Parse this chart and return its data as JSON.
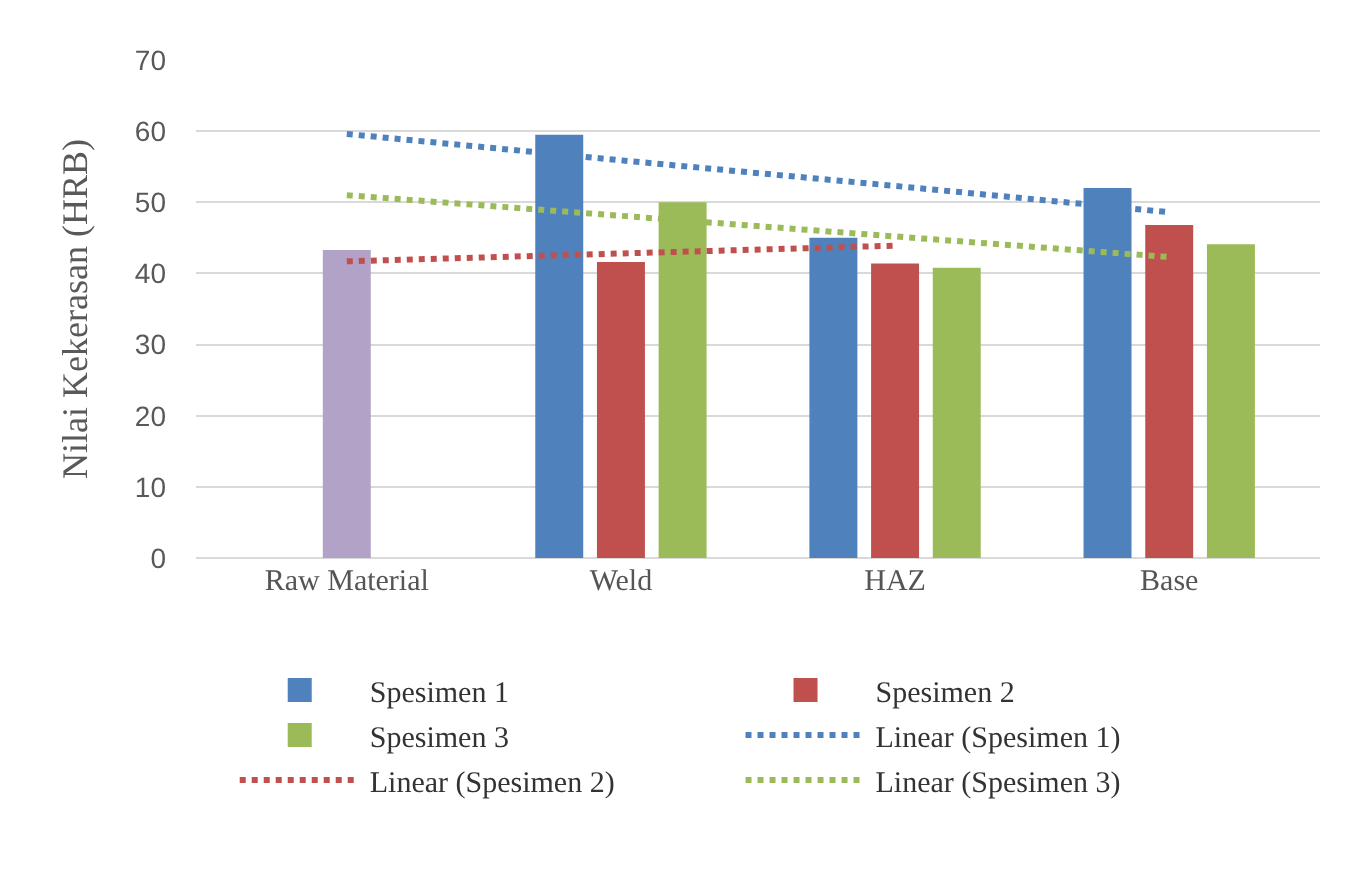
{
  "chart_data": {
    "type": "bar",
    "ylabel": "Nilai Kekerasan (HRB)",
    "categories": [
      "Raw Material",
      "Weld",
      "HAZ",
      "Base"
    ],
    "series": [
      {
        "name": "Spesimen 1",
        "color": "#4f81bd",
        "values": [
          null,
          59.5,
          45.0,
          52.0
        ]
      },
      {
        "name": "Spesimen 2",
        "color": "#c0504d",
        "values": [
          null,
          41.6,
          41.4,
          46.8
        ]
      },
      {
        "name": "Spesimen 3",
        "color": "#9bbb59",
        "values": [
          null,
          50.0,
          40.8,
          44.1
        ]
      },
      {
        "color": "#b2a2c7",
        "values": [
          43.3,
          null,
          null,
          null
        ]
      },
      {
        "name": "Linear (Spesimen 1)",
        "type": "line",
        "line_style": "dotted",
        "marker": "none",
        "color": "#4f81bd",
        "values": [
          59.6,
          55.9,
          52.3,
          48.6
        ]
      },
      {
        "name": "Linear (Spesimen 2)",
        "type": "line",
        "line_style": "dotted",
        "marker": "none",
        "color": "#c0504d",
        "values": [
          41.7,
          42.8,
          43.9,
          null
        ]
      },
      {
        "name": "Linear (Spesimen 3)",
        "type": "line",
        "line_style": "dotted",
        "marker": "none",
        "color": "#9bbb59",
        "values": [
          51.0,
          48.1,
          45.2,
          42.3
        ]
      }
    ],
    "ylim": [
      0,
      70
    ],
    "yticks": [
      0,
      10,
      20,
      30,
      40,
      50,
      60,
      70
    ],
    "grid": "y",
    "legend": "bottom"
  }
}
